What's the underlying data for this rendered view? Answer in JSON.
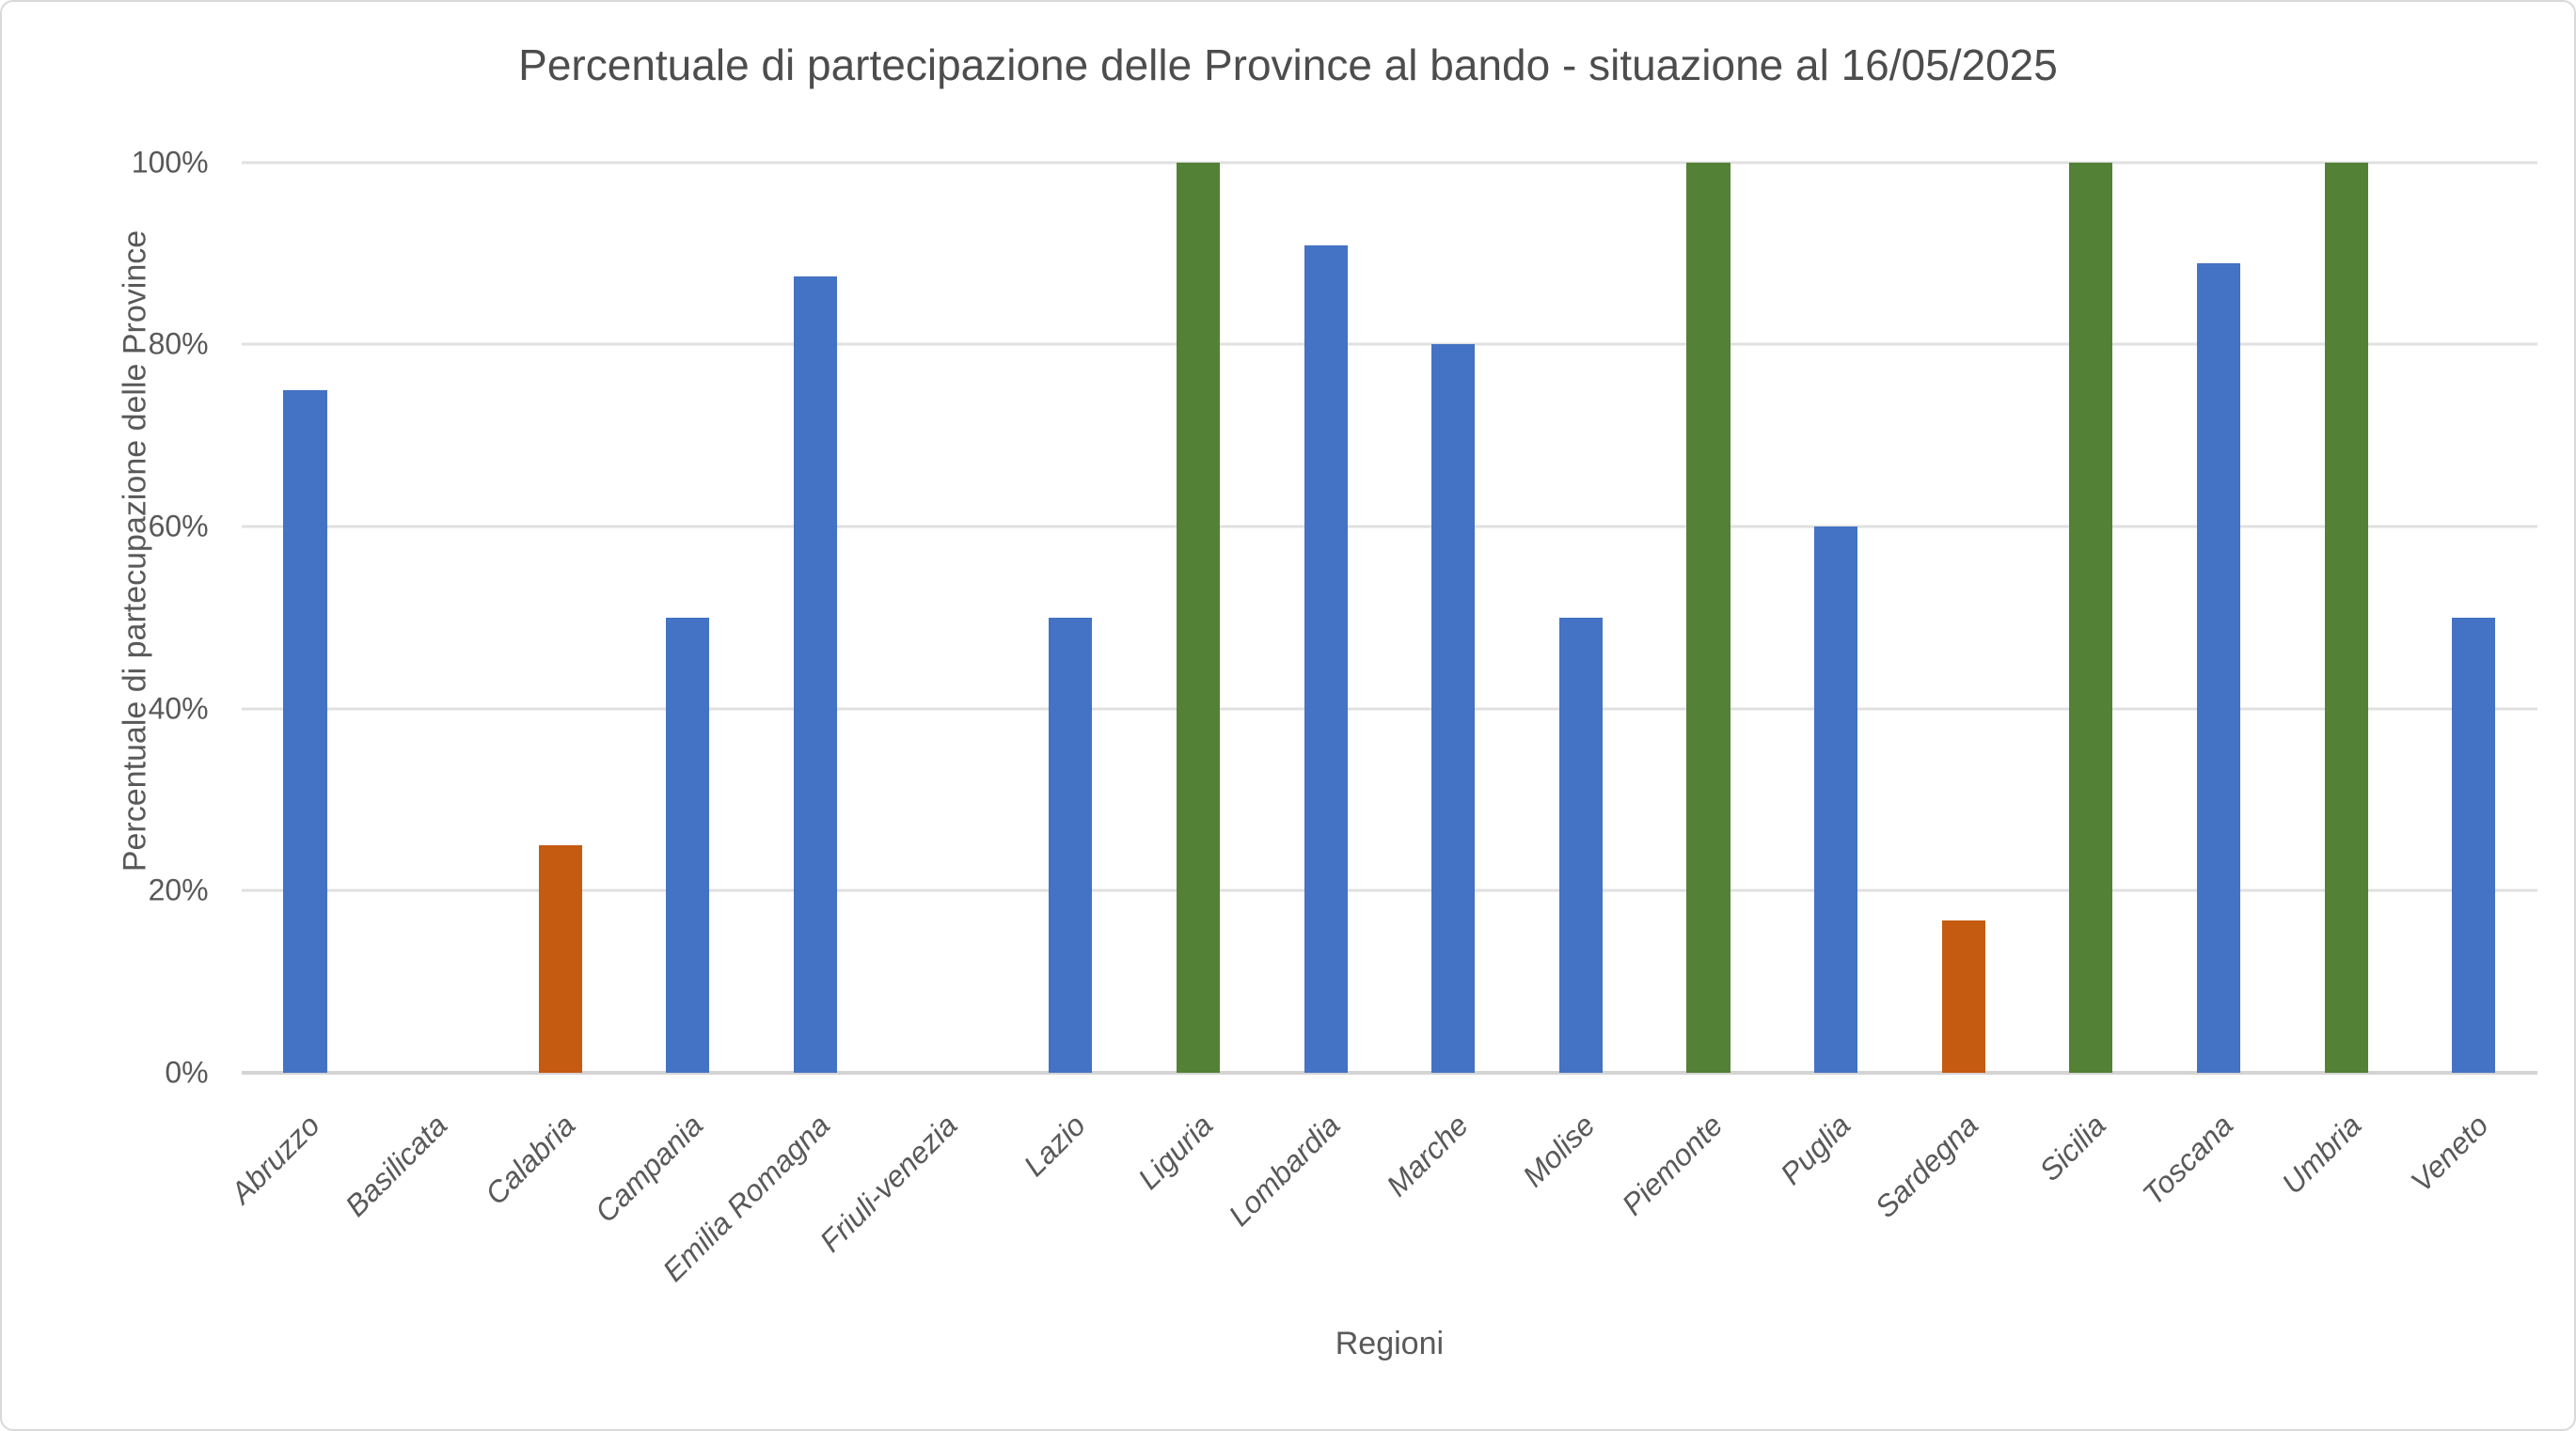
{
  "chart_data": {
    "type": "bar",
    "title": "Percentuale di partecipazione delle Province al bando - situazione al 16/05/2025",
    "xlabel": "Regioni",
    "ylabel": "Percentuale  di partecupazione delle Province",
    "ylim": [
      0,
      100
    ],
    "yticks": [
      "0%",
      "20%",
      "40%",
      "60%",
      "80%",
      "100%"
    ],
    "ytick_values": [
      0,
      20,
      40,
      60,
      80,
      100
    ],
    "grid": true,
    "legend": false,
    "categories": [
      "Abruzzo",
      "Basilicata",
      "Calabria",
      "Campania",
      "Emilia Romagna",
      "Friuli-venezia",
      "Lazio",
      "Liguria",
      "Lombardia",
      "Marche",
      "Molise",
      "Piemonte",
      "Puglia",
      "Sardegna",
      "Sicilia",
      "Toscana",
      "Umbria",
      "Veneto"
    ],
    "values": [
      75,
      0,
      25,
      50,
      87.5,
      0,
      50,
      100,
      90.9,
      80,
      50,
      100,
      60,
      16.7,
      100,
      88.9,
      100,
      50
    ],
    "bar_color_names": [
      "blue",
      "none",
      "orange",
      "blue",
      "blue",
      "none",
      "blue",
      "green",
      "blue",
      "blue",
      "blue",
      "green",
      "blue",
      "orange",
      "green",
      "blue",
      "green",
      "blue"
    ],
    "colors": {
      "blue": "#4472C4",
      "orange": "#C55A11",
      "green": "#538135",
      "gridline": "#e0e0e0",
      "axis_text": "#595959"
    }
  }
}
